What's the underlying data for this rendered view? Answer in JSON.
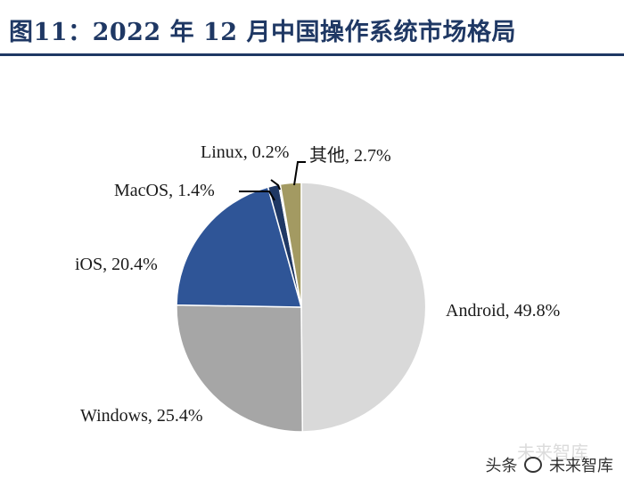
{
  "header": {
    "title": "图11：2022 年 12 月中国操作系统市场格局"
  },
  "chart_data": {
    "type": "pie",
    "title": "",
    "start_angle_deg": 0,
    "direction": "clockwise",
    "slices": [
      {
        "label": "Android",
        "value": 49.8,
        "text": "Android, 49.8%",
        "color": "#d9d9d9"
      },
      {
        "label": "Windows",
        "value": 25.4,
        "text": "Windows, 25.4%",
        "color": "#a6a6a6"
      },
      {
        "label": "iOS",
        "value": 20.4,
        "text": "iOS, 20.4%",
        "color": "#2f5597"
      },
      {
        "label": "MacOS",
        "value": 1.4,
        "text": "MacOS, 1.4%",
        "color": "#1f3864"
      },
      {
        "label": "Linux",
        "value": 0.2,
        "text": "Linux, 0.2%",
        "color": "#7f7f7f"
      },
      {
        "label": "其他",
        "value": 2.7,
        "text": "其他, 2.7%",
        "color": "#a39a62"
      }
    ]
  },
  "watermark": {
    "text_left": "头条",
    "text_right": "未来智库",
    "ghost": "未来智库"
  }
}
